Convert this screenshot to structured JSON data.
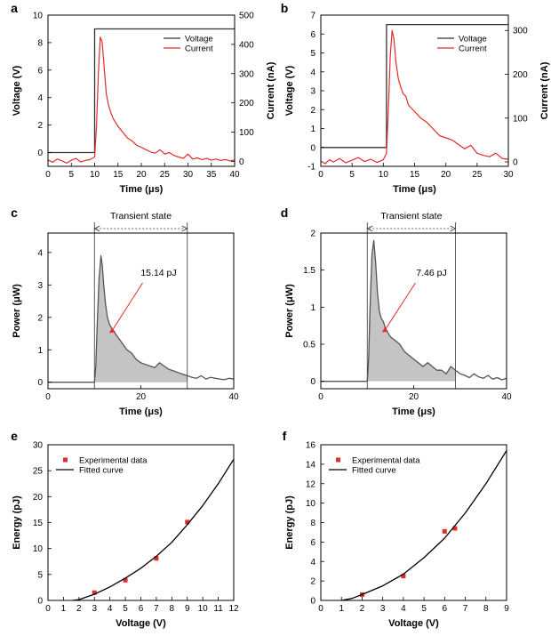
{
  "chart_data": [
    {
      "panel": "a",
      "type": "line",
      "xlabel": "Time (μs)",
      "ylabel": "Voltage (V)",
      "y2label": "Current (nA)",
      "xlim": [
        0,
        40
      ],
      "ylim": [
        -1,
        10
      ],
      "y2lim": [
        -17,
        500
      ],
      "xticks": [
        0,
        5,
        10,
        15,
        20,
        25,
        30,
        35,
        40
      ],
      "yticks": [
        0,
        2,
        4,
        6,
        8,
        10
      ],
      "y2ticks": [
        0,
        100,
        200,
        300,
        400,
        500
      ],
      "legend": [
        "Voltage",
        "Current"
      ],
      "legend_position": "top-right",
      "series": [
        {
          "name": "Voltage",
          "color": "#333333",
          "x": [
            0,
            10,
            10,
            40
          ],
          "y": [
            0,
            0,
            9,
            9
          ]
        },
        {
          "name": "Current",
          "color": "#e32b2b",
          "axis": "right",
          "x": [
            0,
            1,
            2,
            3,
            4,
            5,
            6,
            7,
            8,
            9,
            10,
            10.4,
            10.8,
            11.2,
            11.6,
            12,
            12.5,
            13,
            13.5,
            14,
            15,
            16,
            17,
            18,
            19,
            20,
            21,
            22,
            23,
            24,
            25,
            26,
            27,
            28,
            29,
            30,
            31,
            32,
            33,
            34,
            35,
            36,
            37,
            38,
            39,
            40
          ],
          "y": [
            5,
            -3,
            8,
            2,
            -6,
            4,
            10,
            -2,
            3,
            6,
            15,
            120,
            300,
            425,
            410,
            330,
            230,
            190,
            165,
            145,
            120,
            100,
            80,
            70,
            55,
            48,
            40,
            32,
            28,
            40,
            25,
            30,
            20,
            15,
            10,
            25,
            8,
            12,
            6,
            10,
            4,
            8,
            3,
            6,
            2,
            5
          ]
        }
      ]
    },
    {
      "panel": "b",
      "type": "line",
      "xlabel": "Time (μs)",
      "ylabel": "Voltage (V)",
      "y2label": "Current (nA)",
      "xlim": [
        0,
        30
      ],
      "ylim": [
        -1,
        7
      ],
      "y2lim": [
        -10,
        335
      ],
      "xticks": [
        0,
        5,
        10,
        15,
        20,
        25,
        30
      ],
      "yticks": [
        -1,
        0,
        1,
        2,
        3,
        4,
        5,
        6,
        7
      ],
      "y2ticks": [
        0,
        100,
        200,
        300
      ],
      "legend": [
        "Voltage",
        "Current"
      ],
      "legend_position": "top-right",
      "series": [
        {
          "name": "Voltage",
          "color": "#333333",
          "x": [
            0,
            10.5,
            10.5,
            30
          ],
          "y": [
            0,
            0,
            6.5,
            6.5
          ]
        },
        {
          "name": "Current",
          "color": "#e32b2b",
          "axis": "right",
          "x": [
            0,
            0.7,
            1.4,
            2,
            3,
            4,
            5,
            6,
            7,
            8,
            9,
            10,
            10.5,
            10.8,
            11.1,
            11.4,
            11.7,
            12,
            12.4,
            12.8,
            13.2,
            13.6,
            14,
            15,
            16,
            17,
            18,
            19,
            20,
            21,
            22,
            23,
            24,
            25,
            26,
            27,
            28,
            29,
            30
          ],
          "y": [
            2,
            -4,
            5,
            0,
            8,
            -2,
            4,
            10,
            1,
            6,
            -1,
            5,
            20,
            120,
            240,
            300,
            280,
            230,
            190,
            170,
            155,
            150,
            130,
            115,
            100,
            90,
            75,
            60,
            55,
            50,
            40,
            30,
            38,
            20,
            15,
            12,
            20,
            8,
            6
          ]
        }
      ]
    },
    {
      "panel": "c",
      "type": "area",
      "xlabel": "Time (μs)",
      "ylabel": "Power (μW)",
      "xlim": [
        0,
        40
      ],
      "ylim": [
        -0.2,
        4.6
      ],
      "xticks": [
        0,
        20,
        40
      ],
      "yticks": [
        0,
        1,
        2,
        3,
        4
      ],
      "shaded_range": [
        10,
        30
      ],
      "bracket_label": "Transient state",
      "annotation": "15.14 pJ",
      "series": [
        {
          "name": "Power",
          "color": "#555555",
          "x": [
            0,
            10,
            10.3,
            10.6,
            11,
            11.4,
            11.7,
            12,
            12.4,
            12.8,
            13.2,
            14,
            15,
            16,
            17,
            18,
            19,
            20,
            21,
            22,
            23,
            24,
            25,
            26,
            27,
            28,
            29,
            30,
            31,
            32,
            33,
            34,
            35,
            36,
            37,
            38,
            39,
            40
          ],
          "y": [
            0,
            0,
            0.5,
            1.8,
            3.2,
            3.9,
            3.6,
            3.0,
            2.4,
            2.0,
            1.8,
            1.6,
            1.4,
            1.2,
            1.0,
            0.9,
            0.7,
            0.6,
            0.55,
            0.5,
            0.45,
            0.6,
            0.5,
            0.4,
            0.35,
            0.3,
            0.25,
            0.2,
            0.15,
            0.12,
            0.2,
            0.1,
            0.15,
            0.12,
            0.1,
            0.08,
            0.12,
            0.1
          ]
        }
      ]
    },
    {
      "panel": "d",
      "type": "area",
      "xlabel": "Time (μs)",
      "ylabel": "Power (μW)",
      "xlim": [
        0,
        40
      ],
      "ylim": [
        -0.1,
        2.0
      ],
      "xticks": [
        0,
        20,
        40
      ],
      "yticks": [
        0,
        0.5,
        1,
        1.5,
        2
      ],
      "shaded_range": [
        10,
        29
      ],
      "bracket_label": "Transient state",
      "annotation": "7.46 pJ",
      "series": [
        {
          "name": "Power",
          "color": "#555555",
          "x": [
            0,
            10,
            10.3,
            10.6,
            11,
            11.4,
            11.8,
            12.2,
            12.6,
            13,
            13.5,
            14,
            15,
            16,
            17,
            18,
            19,
            20,
            21,
            22,
            23,
            24,
            25,
            26,
            27,
            28,
            29,
            30,
            31,
            32,
            33,
            34,
            35,
            36,
            37,
            38,
            39,
            40
          ],
          "y": [
            0,
            0,
            0.3,
            1.0,
            1.7,
            1.9,
            1.6,
            1.2,
            0.95,
            0.85,
            0.8,
            0.7,
            0.6,
            0.55,
            0.5,
            0.4,
            0.35,
            0.3,
            0.25,
            0.2,
            0.25,
            0.2,
            0.15,
            0.15,
            0.1,
            0.2,
            0.15,
            0.1,
            0.08,
            0.05,
            0.1,
            0.06,
            0.04,
            0.08,
            0.03,
            0.05,
            0.02,
            0.04
          ]
        }
      ]
    },
    {
      "panel": "e",
      "type": "scatter",
      "xlabel": "Voltage (V)",
      "ylabel": "Energy (pJ)",
      "xlim": [
        0,
        12
      ],
      "ylim": [
        0,
        30
      ],
      "xticks": [
        0,
        1,
        2,
        3,
        4,
        5,
        6,
        7,
        8,
        9,
        10,
        11,
        12
      ],
      "yticks": [
        0,
        5,
        10,
        15,
        20,
        25,
        30
      ],
      "legend": [
        "Experimental data",
        "Fitted curve"
      ],
      "legend_position": "top-left",
      "series": [
        {
          "name": "Experimental data",
          "color": "#e32b2b",
          "x": [
            3,
            5,
            7,
            9
          ],
          "y": [
            1.5,
            3.9,
            8.1,
            15.1
          ]
        },
        {
          "name": "Fitted curve",
          "color": "#000000",
          "x": [
            1.6,
            2,
            3,
            4,
            5,
            6,
            7,
            8,
            9,
            10,
            11,
            12
          ],
          "y": [
            0,
            0.15,
            1.2,
            2.6,
            4.3,
            6.2,
            8.5,
            11.2,
            14.6,
            18.3,
            22.5,
            27.2
          ]
        }
      ]
    },
    {
      "panel": "f",
      "type": "scatter",
      "xlabel": "Voltage (V)",
      "ylabel": "Energy (pJ)",
      "xlim": [
        0,
        9
      ],
      "ylim": [
        0,
        16
      ],
      "xticks": [
        0,
        1,
        2,
        3,
        4,
        5,
        6,
        7,
        8,
        9
      ],
      "yticks": [
        0,
        2,
        4,
        6,
        8,
        10,
        12,
        14,
        16
      ],
      "legend": [
        "Experimental data",
        "Fitted curve"
      ],
      "legend_position": "top-left",
      "series": [
        {
          "name": "Experimental data",
          "color": "#e32b2b",
          "x": [
            2,
            4,
            6,
            6.5
          ],
          "y": [
            0.6,
            2.5,
            7.1,
            7.4
          ]
        },
        {
          "name": "Fitted curve",
          "color": "#000000",
          "x": [
            1,
            1.5,
            2,
            3,
            4,
            5,
            6,
            7,
            8,
            9
          ],
          "y": [
            0,
            0.2,
            0.6,
            1.5,
            2.7,
            4.4,
            6.4,
            9.0,
            12.0,
            15.4
          ]
        }
      ]
    }
  ]
}
